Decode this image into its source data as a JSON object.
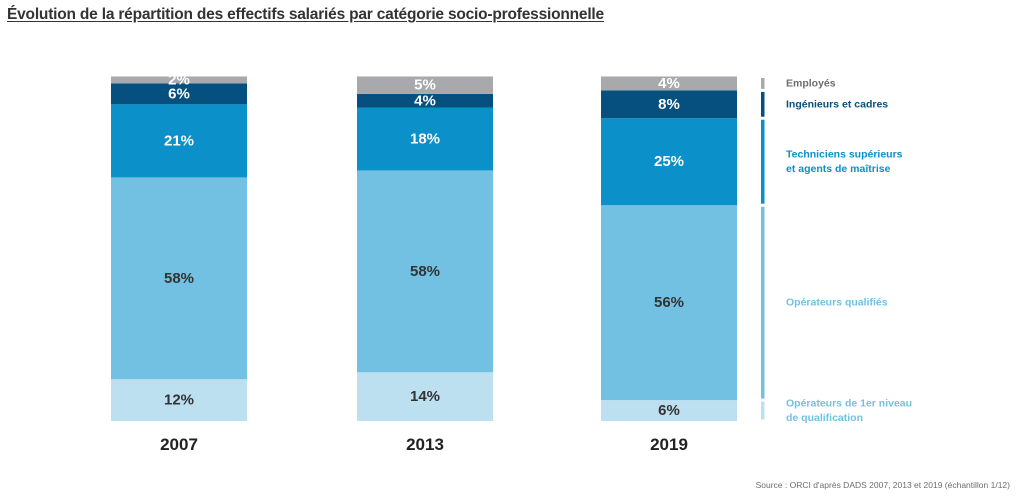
{
  "chart_data": {
    "type": "bar",
    "stacked": true,
    "percent": true,
    "title": "Évolution de la répartition des effectifs salariés par catégorie socio-professionnelle",
    "categories": [
      "2007",
      "2013",
      "2019"
    ],
    "series": [
      {
        "name": "Opérateurs de 1er niveau de qualification",
        "color": "#bde0f0",
        "label_color": "#333333",
        "values": [
          12,
          14,
          6
        ],
        "labels": [
          "12%",
          "14%",
          "6%"
        ]
      },
      {
        "name": "Opérateurs qualifiés",
        "color": "#73c1e2",
        "label_color": "#333333",
        "values": [
          58,
          58,
          56
        ],
        "labels": [
          "58%",
          "58%",
          "56%"
        ]
      },
      {
        "name": "Techniciens supérieurs et agents de maîtrise",
        "color": "#0b90c9",
        "label_color": "#ffffff",
        "values": [
          21,
          18,
          25
        ],
        "labels": [
          "21%",
          "18%",
          "25%"
        ]
      },
      {
        "name": "Ingénieurs et cadres",
        "color": "#05507f",
        "label_color": "#ffffff",
        "values": [
          6,
          4,
          8
        ],
        "labels": [
          "6%",
          "4%",
          "8%"
        ]
      },
      {
        "name": "Employés",
        "color": "#a7a9ac",
        "label_color": "#ffffff",
        "values": [
          2,
          5,
          4
        ],
        "labels": [
          "2%",
          "5%",
          "4%"
        ]
      }
    ],
    "legend": {
      "placement": "right",
      "entries": [
        {
          "lines": [
            "Employés"
          ],
          "color": "#a7a9ac",
          "text_color": "#6d6d6d"
        },
        {
          "lines": [
            "Ingénieurs et cadres"
          ],
          "color": "#05507f",
          "text_color": "#05507f"
        },
        {
          "lines": [
            "Techniciens supérieurs",
            "et agents de maîtrise"
          ],
          "color": "#0b90c9",
          "text_color": "#0b90c9"
        },
        {
          "lines": [
            "Opérateurs qualifiés"
          ],
          "color": "#73c1e2",
          "text_color": "#73c1e2"
        },
        {
          "lines": [
            "Opérateurs de 1er niveau",
            "de qualification"
          ],
          "color": "#bde0f0",
          "text_color": "#73c1e2"
        }
      ]
    },
    "ylim": [
      0,
      100
    ],
    "grid": false,
    "xlabel": "",
    "ylabel": ""
  },
  "source": "Source : ORCI d'après DADS 2007, 2013 et 2019 (échantillon 1/12)"
}
